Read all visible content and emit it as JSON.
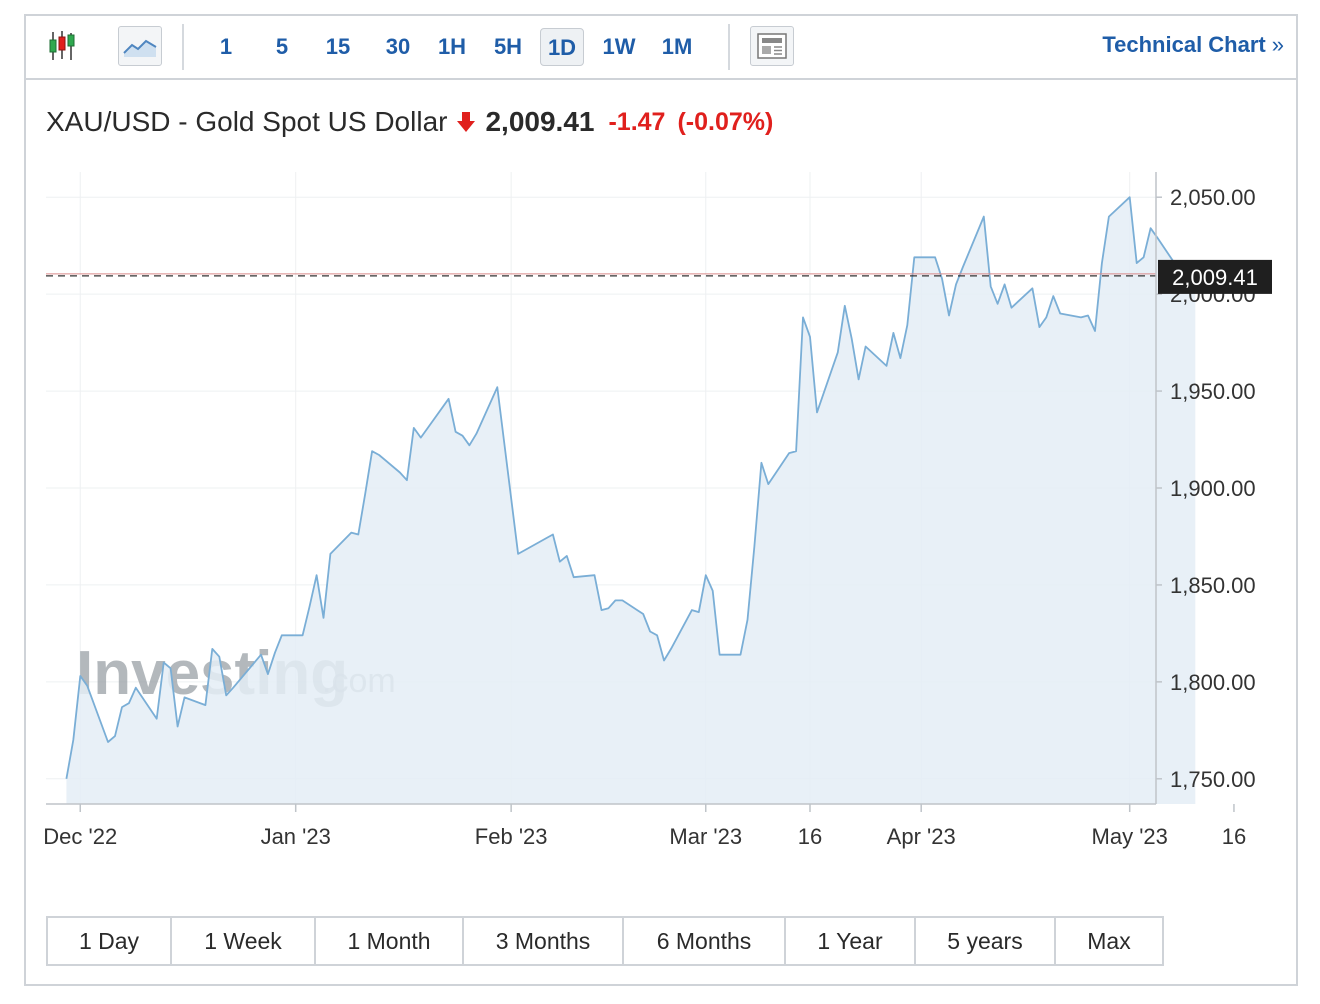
{
  "toolbar": {
    "timeframes": [
      "1",
      "5",
      "15",
      "30",
      "1H",
      "5H",
      "1D",
      "1W",
      "1M"
    ],
    "active_timeframe": "1D",
    "technical_chart_label": "Technical Chart",
    "technical_chart_chevron": "»"
  },
  "quote": {
    "title": "XAU/USD - Gold Spot US Dollar",
    "price": "2,009.41",
    "change": "-1.47",
    "change_pct": "(-0.07%)",
    "direction": "down"
  },
  "watermark": {
    "brand": "Investing",
    "suffix": ".com"
  },
  "ranges": [
    "1 Day",
    "1 Week",
    "1 Month",
    "3 Months",
    "6 Months",
    "1 Year",
    "5 years",
    "Max"
  ],
  "colors": {
    "line": "#7aaed6",
    "fill": "#e4edf6",
    "down": "#e0201d",
    "accent": "#1f5da8",
    "price_tag_bg": "#1f1f1f"
  },
  "chart_data": {
    "type": "area",
    "ylim": [
      1737,
      2063
    ],
    "y_ticks": [
      1750,
      1800,
      1850,
      1900,
      1950,
      2000,
      2050
    ],
    "y_tick_labels": [
      "1,750.00",
      "1,800.00",
      "1,850.00",
      "1,900.00",
      "1,950.00",
      "2,000.00",
      "2,050.00"
    ],
    "x_ticks": [
      {
        "label": "Dec '22",
        "date": "2022-12-01"
      },
      {
        "label": "Jan '23",
        "date": "2023-01-01"
      },
      {
        "label": "Feb '23",
        "date": "2023-02-01"
      },
      {
        "label": "Mar '23",
        "date": "2023-03-01"
      },
      {
        "label": "16",
        "date": "2023-03-16"
      },
      {
        "label": "Apr '23",
        "date": "2023-04-01"
      },
      {
        "label": "May '23",
        "date": "2023-05-01"
      },
      {
        "label": "16",
        "date": "2023-05-16"
      }
    ],
    "last_price": 2009.41,
    "last_price_label": "2,009.41",
    "series": [
      {
        "points": [
          [
            "2022-11-29",
            1750
          ],
          [
            "2022-11-30",
            1770
          ],
          [
            "2022-12-01",
            1803
          ],
          [
            "2022-12-02",
            1798
          ],
          [
            "2022-12-05",
            1769
          ],
          [
            "2022-12-06",
            1772
          ],
          [
            "2022-12-07",
            1787
          ],
          [
            "2022-12-08",
            1789
          ],
          [
            "2022-12-09",
            1797
          ],
          [
            "2022-12-12",
            1781
          ],
          [
            "2022-12-13",
            1810
          ],
          [
            "2022-12-14",
            1807
          ],
          [
            "2022-12-15",
            1777
          ],
          [
            "2022-12-16",
            1792
          ],
          [
            "2022-12-19",
            1788
          ],
          [
            "2022-12-20",
            1817
          ],
          [
            "2022-12-21",
            1813
          ],
          [
            "2022-12-22",
            1793
          ],
          [
            "2022-12-23",
            1797
          ],
          [
            "2022-12-27",
            1814
          ],
          [
            "2022-12-28",
            1804
          ],
          [
            "2022-12-29",
            1815
          ],
          [
            "2022-12-30",
            1824
          ],
          [
            "2023-01-02",
            1824
          ],
          [
            "2023-01-03",
            1839
          ],
          [
            "2023-01-04",
            1855
          ],
          [
            "2023-01-05",
            1833
          ],
          [
            "2023-01-06",
            1866
          ],
          [
            "2023-01-09",
            1877
          ],
          [
            "2023-01-10",
            1876
          ],
          [
            "2023-01-11",
            1897
          ],
          [
            "2023-01-12",
            1919
          ],
          [
            "2023-01-13",
            1917
          ],
          [
            "2023-01-16",
            1908
          ],
          [
            "2023-01-17",
            1904
          ],
          [
            "2023-01-18",
            1931
          ],
          [
            "2023-01-19",
            1926
          ],
          [
            "2023-01-20",
            1931
          ],
          [
            "2023-01-23",
            1946
          ],
          [
            "2023-01-24",
            1929
          ],
          [
            "2023-01-25",
            1927
          ],
          [
            "2023-01-26",
            1922
          ],
          [
            "2023-01-27",
            1928
          ],
          [
            "2023-01-30",
            1952
          ],
          [
            "2023-02-02",
            1866
          ],
          [
            "2023-02-03",
            1868
          ],
          [
            "2023-02-06",
            1874
          ],
          [
            "2023-02-07",
            1876
          ],
          [
            "2023-02-08",
            1862
          ],
          [
            "2023-02-09",
            1865
          ],
          [
            "2023-02-10",
            1854
          ],
          [
            "2023-02-13",
            1855
          ],
          [
            "2023-02-14",
            1837
          ],
          [
            "2023-02-15",
            1838
          ],
          [
            "2023-02-16",
            1842
          ],
          [
            "2023-02-17",
            1842
          ],
          [
            "2023-02-20",
            1835
          ],
          [
            "2023-02-21",
            1826
          ],
          [
            "2023-02-22",
            1824
          ],
          [
            "2023-02-23",
            1811
          ],
          [
            "2023-02-24",
            1817
          ],
          [
            "2023-02-27",
            1837
          ],
          [
            "2023-02-28",
            1836
          ],
          [
            "2023-03-01",
            1855
          ],
          [
            "2023-03-02",
            1847
          ],
          [
            "2023-03-03",
            1814
          ],
          [
            "2023-03-06",
            1814
          ],
          [
            "2023-03-07",
            1832
          ],
          [
            "2023-03-08",
            1870
          ],
          [
            "2023-03-09",
            1913
          ],
          [
            "2023-03-10",
            1902
          ],
          [
            "2023-03-13",
            1918
          ],
          [
            "2023-03-14",
            1919
          ],
          [
            "2023-03-15",
            1988
          ],
          [
            "2023-03-16",
            1978
          ],
          [
            "2023-03-17",
            1939
          ],
          [
            "2023-03-20",
            1970
          ],
          [
            "2023-03-21",
            1994
          ],
          [
            "2023-03-22",
            1977
          ],
          [
            "2023-03-23",
            1956
          ],
          [
            "2023-03-24",
            1973
          ],
          [
            "2023-03-27",
            1963
          ],
          [
            "2023-03-28",
            1980
          ],
          [
            "2023-03-29",
            1967
          ],
          [
            "2023-03-30",
            1984
          ],
          [
            "2023-03-31",
            2019
          ],
          [
            "2023-04-03",
            2019
          ],
          [
            "2023-04-04",
            2008
          ],
          [
            "2023-04-05",
            1989
          ],
          [
            "2023-04-06",
            2005
          ],
          [
            "2023-04-07",
            2014
          ],
          [
            "2023-04-10",
            2040
          ],
          [
            "2023-04-11",
            2004
          ],
          [
            "2023-04-12",
            1995
          ],
          [
            "2023-04-13",
            2005
          ],
          [
            "2023-04-14",
            1993
          ],
          [
            "2023-04-17",
            2003
          ],
          [
            "2023-04-18",
            1983
          ],
          [
            "2023-04-19",
            1988
          ],
          [
            "2023-04-20",
            1999
          ],
          [
            "2023-04-21",
            1990
          ],
          [
            "2023-04-24",
            1988
          ],
          [
            "2023-04-25",
            1989
          ],
          [
            "2023-04-26",
            1981
          ],
          [
            "2023-04-27",
            2016
          ],
          [
            "2023-04-28",
            2040
          ],
          [
            "2023-05-01",
            2050
          ],
          [
            "2023-05-02",
            2016
          ],
          [
            "2023-05-03",
            2019
          ],
          [
            "2023-05-04",
            2034
          ],
          [
            "2023-05-05",
            2029
          ],
          [
            "2023-05-08",
            2013
          ],
          [
            "2023-05-09",
            2010
          ],
          [
            "2023-05-10",
            2009.41
          ]
        ]
      }
    ]
  }
}
